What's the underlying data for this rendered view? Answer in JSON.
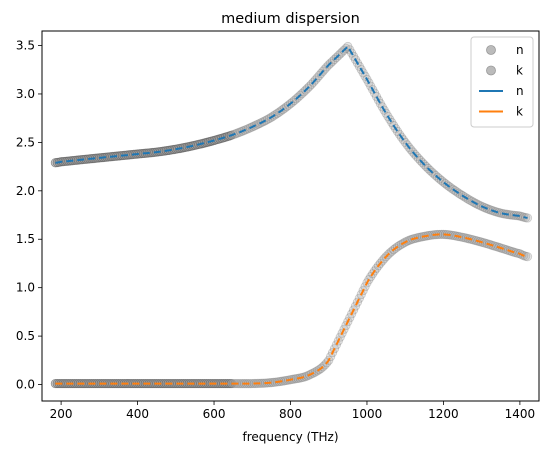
{
  "chart_data": {
    "type": "line",
    "title": "medium dispersion",
    "xlabel": "frequency (THz)",
    "ylabel": "",
    "xlim": [
      150,
      1450
    ],
    "ylim": [
      -0.17,
      3.65
    ],
    "xticks": [
      "200",
      "400",
      "600",
      "800",
      "1000",
      "1200",
      "1400"
    ],
    "yticks": [
      "0.0",
      "0.5",
      "1.0",
      "1.5",
      "2.0",
      "2.5",
      "3.0",
      "3.5"
    ],
    "grid": false,
    "legend_position": "top-right",
    "legend": [
      {
        "label": "n",
        "kind": "marker",
        "color": "#bbbbbb"
      },
      {
        "label": "k",
        "kind": "marker",
        "color": "#bbbbbb"
      },
      {
        "label": "n",
        "kind": "line",
        "color": "#1f77b4"
      },
      {
        "label": "k",
        "kind": "line",
        "color": "#ff7f0e"
      }
    ],
    "x": [
      185,
      200,
      250,
      300,
      350,
      400,
      450,
      500,
      550,
      600,
      650,
      700,
      750,
      800,
      850,
      900,
      950,
      1000,
      1050,
      1100,
      1150,
      1200,
      1250,
      1300,
      1350,
      1400,
      1420
    ],
    "series": [
      {
        "name": "n",
        "style": "markers",
        "color": "#888888",
        "values": [
          2.29,
          2.3,
          2.32,
          2.34,
          2.36,
          2.38,
          2.4,
          2.43,
          2.47,
          2.52,
          2.58,
          2.66,
          2.76,
          2.9,
          3.08,
          3.3,
          3.49,
          3.15,
          2.8,
          2.5,
          2.27,
          2.09,
          1.95,
          1.84,
          1.77,
          1.74,
          1.72
        ]
      },
      {
        "name": "k",
        "style": "markers",
        "color": "#888888",
        "values": [
          0.01,
          0.01,
          0.01,
          0.01,
          0.01,
          0.01,
          0.01,
          0.01,
          0.01,
          0.01,
          0.01,
          0.01,
          0.02,
          0.05,
          0.1,
          0.25,
          0.65,
          1.05,
          1.32,
          1.47,
          1.53,
          1.55,
          1.52,
          1.47,
          1.41,
          1.35,
          1.32
        ]
      },
      {
        "name": "n",
        "style": "dashed",
        "color": "#1f77b4",
        "values": [
          2.29,
          2.3,
          2.32,
          2.34,
          2.36,
          2.38,
          2.4,
          2.43,
          2.47,
          2.52,
          2.58,
          2.66,
          2.76,
          2.9,
          3.08,
          3.3,
          3.49,
          3.15,
          2.8,
          2.5,
          2.27,
          2.09,
          1.95,
          1.84,
          1.77,
          1.74,
          1.72
        ]
      },
      {
        "name": "k",
        "style": "dashed",
        "color": "#ff7f0e",
        "values": [
          0.01,
          0.01,
          0.01,
          0.01,
          0.01,
          0.01,
          0.01,
          0.01,
          0.01,
          0.01,
          0.01,
          0.01,
          0.02,
          0.05,
          0.1,
          0.25,
          0.65,
          1.05,
          1.32,
          1.47,
          1.53,
          1.55,
          1.52,
          1.47,
          1.41,
          1.35,
          1.32
        ]
      }
    ]
  }
}
